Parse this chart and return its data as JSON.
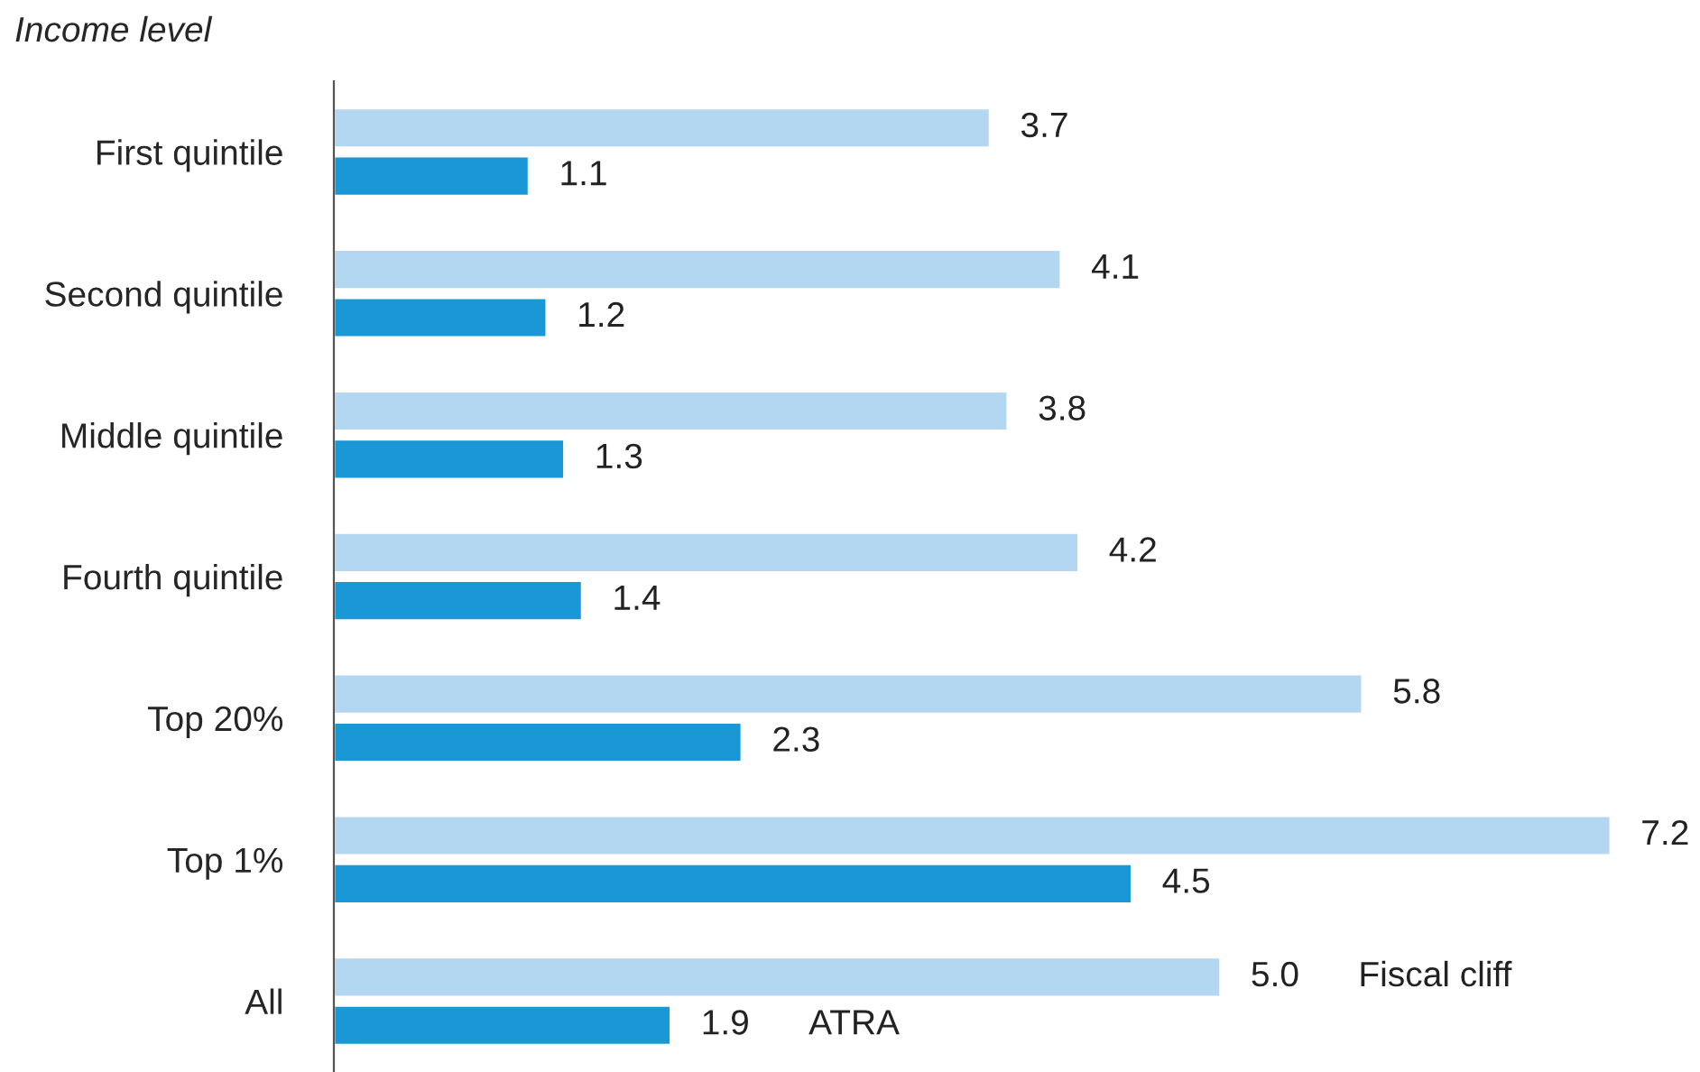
{
  "chart_data": {
    "type": "bar",
    "orientation": "horizontal",
    "ylabel": "Income level",
    "categories": [
      "First quintile",
      "Second quintile",
      "Middle quintile",
      "Fourth quintile",
      "Top 20%",
      "Top 1%",
      "All"
    ],
    "series": [
      {
        "name": "Fiscal cliff",
        "color": "#b3d7f0",
        "values": [
          3.7,
          4.1,
          3.8,
          4.2,
          5.8,
          7.2,
          5.0
        ],
        "value_labels": [
          "3.7",
          "4.1",
          "3.8",
          "4.2",
          "5.8",
          "7.2",
          "5.0"
        ]
      },
      {
        "name": "ATRA",
        "color": "#1a98d5",
        "values": [
          1.1,
          1.2,
          1.3,
          1.4,
          2.3,
          4.5,
          1.9
        ],
        "value_labels": [
          "1.1",
          "1.2",
          "1.3",
          "1.4",
          "2.3",
          "4.5",
          "1.9"
        ]
      }
    ],
    "legend": false,
    "grid": false
  }
}
